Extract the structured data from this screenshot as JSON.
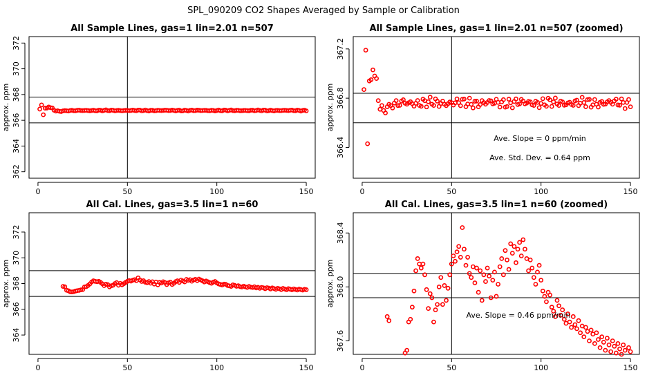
{
  "figure": {
    "suptitle": "SPL_090209  CO2 Shapes Averaged by Sample or Calibration"
  },
  "chart_data": [
    {
      "type": "scatter",
      "title": "All Sample Lines, gas=1 lin=2.01 n=507",
      "ylabel": "approx. ppm",
      "xlim": [
        -5,
        155
      ],
      "ylim": [
        361.5,
        372.5
      ],
      "xticks": [
        0,
        50,
        100,
        150
      ],
      "xtick_labels": [
        "0",
        "50",
        "100",
        "150"
      ],
      "yticks": [
        362,
        364,
        366,
        368,
        370,
        372
      ],
      "ytick_labels": [
        "362",
        "364",
        "366",
        "368",
        "370",
        "372"
      ],
      "vline": 50,
      "hlines": [
        367.8,
        365.8
      ],
      "annotations": [],
      "series": [
        {
          "name": "CO2",
          "color": "#ff0000",
          "x": [],
          "y": []
        }
      ]
    },
    {
      "type": "scatter",
      "title": "All Sample Lines, gas=1 lin=2.01 n=507 (zoomed)",
      "ylabel": "approx. ppm",
      "xlim": [
        -5,
        155
      ],
      "ylim": [
        366.15,
        367.3
      ],
      "xticks": [
        0,
        50,
        100,
        150
      ],
      "xtick_labels": [
        "0",
        "50",
        "100",
        "150"
      ],
      "yticks": [
        366.4,
        366.8,
        367.2
      ],
      "ytick_labels": [
        "366.4",
        "366.8",
        "367.2"
      ],
      "vline": 50,
      "hlines": [
        366.84,
        366.6
      ],
      "annotations": [
        "Ave. Slope =  0  ppm/min",
        "Ave. Std. Dev. =  0.64  ppm"
      ],
      "series": [
        {
          "name": "CO2",
          "color": "#ff0000",
          "x": [],
          "y": []
        }
      ]
    },
    {
      "type": "scatter",
      "title": "All Cal. Lines, gas=3.5 lin=1 n=60",
      "ylabel": "approx. ppm",
      "xlim": [
        -5,
        155
      ],
      "ylim": [
        362.5,
        373.5
      ],
      "xticks": [
        0,
        50,
        100,
        150
      ],
      "xtick_labels": [
        "0",
        "50",
        "100",
        "150"
      ],
      "yticks": [
        364,
        366,
        368,
        370,
        372
      ],
      "ytick_labels": [
        "364",
        "366",
        "368",
        "370",
        "372"
      ],
      "vline": 50,
      "hlines": [
        369.0,
        367.0
      ],
      "annotations": [],
      "series": [
        {
          "name": "CO2",
          "color": "#ff0000",
          "x": [],
          "y": []
        }
      ]
    },
    {
      "type": "scatter",
      "title": "All Cal. Lines, gas=3.5 lin=1 n=60 (zoomed)",
      "ylabel": "approx. ppm",
      "xlim": [
        -5,
        155
      ],
      "ylim": [
        367.5,
        368.55
      ],
      "xticks": [
        0,
        50,
        100,
        150
      ],
      "xtick_labels": [
        "0",
        "50",
        "100",
        "150"
      ],
      "yticks": [
        367.6,
        368.0,
        368.4
      ],
      "ytick_labels": [
        "367.6",
        "368.0",
        "368.4"
      ],
      "vline": 50,
      "hlines": [
        368.1,
        367.92
      ],
      "annotations": [
        "Ave. Slope =  0.46  ppm/min"
      ],
      "series": [
        {
          "name": "CO2",
          "color": "#ff0000",
          "x": [],
          "y": []
        }
      ]
    }
  ]
}
